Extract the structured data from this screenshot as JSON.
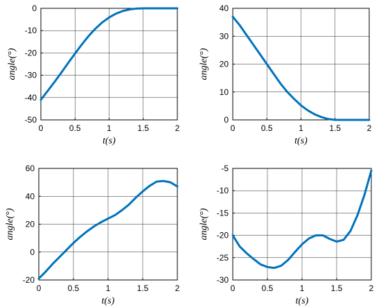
{
  "style": {
    "line_color": "#0072BD",
    "grid_color": "#262626",
    "background": "#ffffff"
  },
  "chart_data": [
    {
      "type": "line",
      "xlabel": "t(s)",
      "ylabel": "angle(°)",
      "xlim": [
        0,
        2
      ],
      "ylim": [
        -50,
        0
      ],
      "xticks": [
        "0",
        "0.5",
        "1",
        "1.5",
        "2"
      ],
      "yticks": [
        "-50",
        "-40",
        "-30",
        "-20",
        "-10",
        "0"
      ],
      "grid": true,
      "series": [
        {
          "x": [
            0,
            0.1,
            0.2,
            0.3,
            0.4,
            0.5,
            0.6,
            0.7,
            0.8,
            0.9,
            1.0,
            1.1,
            1.2,
            1.3,
            1.4,
            1.5,
            1.6,
            1.7,
            1.8,
            1.9,
            2.0
          ],
          "y": [
            -41,
            -37,
            -33,
            -28.8,
            -24.5,
            -20.3,
            -16.2,
            -12.4,
            -9.1,
            -6.3,
            -4.1,
            -2.4,
            -1.2,
            -0.5,
            -0.1,
            0,
            0,
            0,
            0,
            0,
            0
          ]
        }
      ]
    },
    {
      "type": "line",
      "xlabel": "t(s)",
      "ylabel": "angle(°)",
      "xlim": [
        0,
        2
      ],
      "ylim": [
        0,
        40
      ],
      "xticks": [
        "0",
        "0.5",
        "1",
        "1.5",
        "2"
      ],
      "yticks": [
        "0",
        "10",
        "20",
        "30",
        "40"
      ],
      "grid": true,
      "series": [
        {
          "x": [
            0,
            0.1,
            0.2,
            0.3,
            0.4,
            0.5,
            0.6,
            0.7,
            0.8,
            0.9,
            1.0,
            1.1,
            1.2,
            1.3,
            1.4,
            1.5,
            1.6,
            1.7,
            1.8,
            1.9,
            2.0
          ],
          "y": [
            37,
            34,
            30.5,
            27,
            23.5,
            20,
            16.5,
            13,
            10,
            7.5,
            5.2,
            3.4,
            2.0,
            1.0,
            0.3,
            0,
            0,
            0,
            0,
            0,
            0
          ]
        }
      ]
    },
    {
      "type": "line",
      "xlabel": "t(s)",
      "ylabel": "angle(°)",
      "xlim": [
        0,
        2
      ],
      "ylim": [
        -20,
        60
      ],
      "xticks": [
        "0",
        "0.5",
        "1",
        "1.5",
        "2"
      ],
      "yticks": [
        "-20",
        "0",
        "20",
        "40",
        "60"
      ],
      "grid": true,
      "series": [
        {
          "x": [
            0,
            0.1,
            0.2,
            0.3,
            0.4,
            0.5,
            0.6,
            0.7,
            0.8,
            0.9,
            1.0,
            1.1,
            1.2,
            1.3,
            1.4,
            1.5,
            1.6,
            1.7,
            1.8,
            1.9,
            2.0
          ],
          "y": [
            -19,
            -14,
            -8.5,
            -3.5,
            1.5,
            6.5,
            11,
            15,
            18.5,
            21.5,
            24,
            26.5,
            30,
            34,
            39,
            43.5,
            47.5,
            50.5,
            51,
            50,
            47
          ]
        }
      ]
    },
    {
      "type": "line",
      "xlabel": "t(s)",
      "ylabel": "angle(°)",
      "xlim": [
        0,
        2
      ],
      "ylim": [
        -30,
        -5
      ],
      "xticks": [
        "0",
        "0.5",
        "1",
        "1.5",
        "2"
      ],
      "yticks": [
        "-30",
        "-25",
        "-20",
        "-15",
        "-10",
        "-5"
      ],
      "grid": true,
      "series": [
        {
          "x": [
            0,
            0.1,
            0.2,
            0.3,
            0.4,
            0.5,
            0.6,
            0.7,
            0.8,
            0.9,
            1.0,
            1.1,
            1.2,
            1.3,
            1.4,
            1.5,
            1.6,
            1.7,
            1.8,
            1.9,
            2.0
          ],
          "y": [
            -20,
            -22.5,
            -24,
            -25.3,
            -26.5,
            -27.1,
            -27.3,
            -26.8,
            -25.5,
            -23.7,
            -22,
            -20.7,
            -20,
            -20,
            -20.8,
            -21.4,
            -21,
            -19,
            -15.5,
            -11,
            -5.5
          ]
        }
      ]
    }
  ]
}
